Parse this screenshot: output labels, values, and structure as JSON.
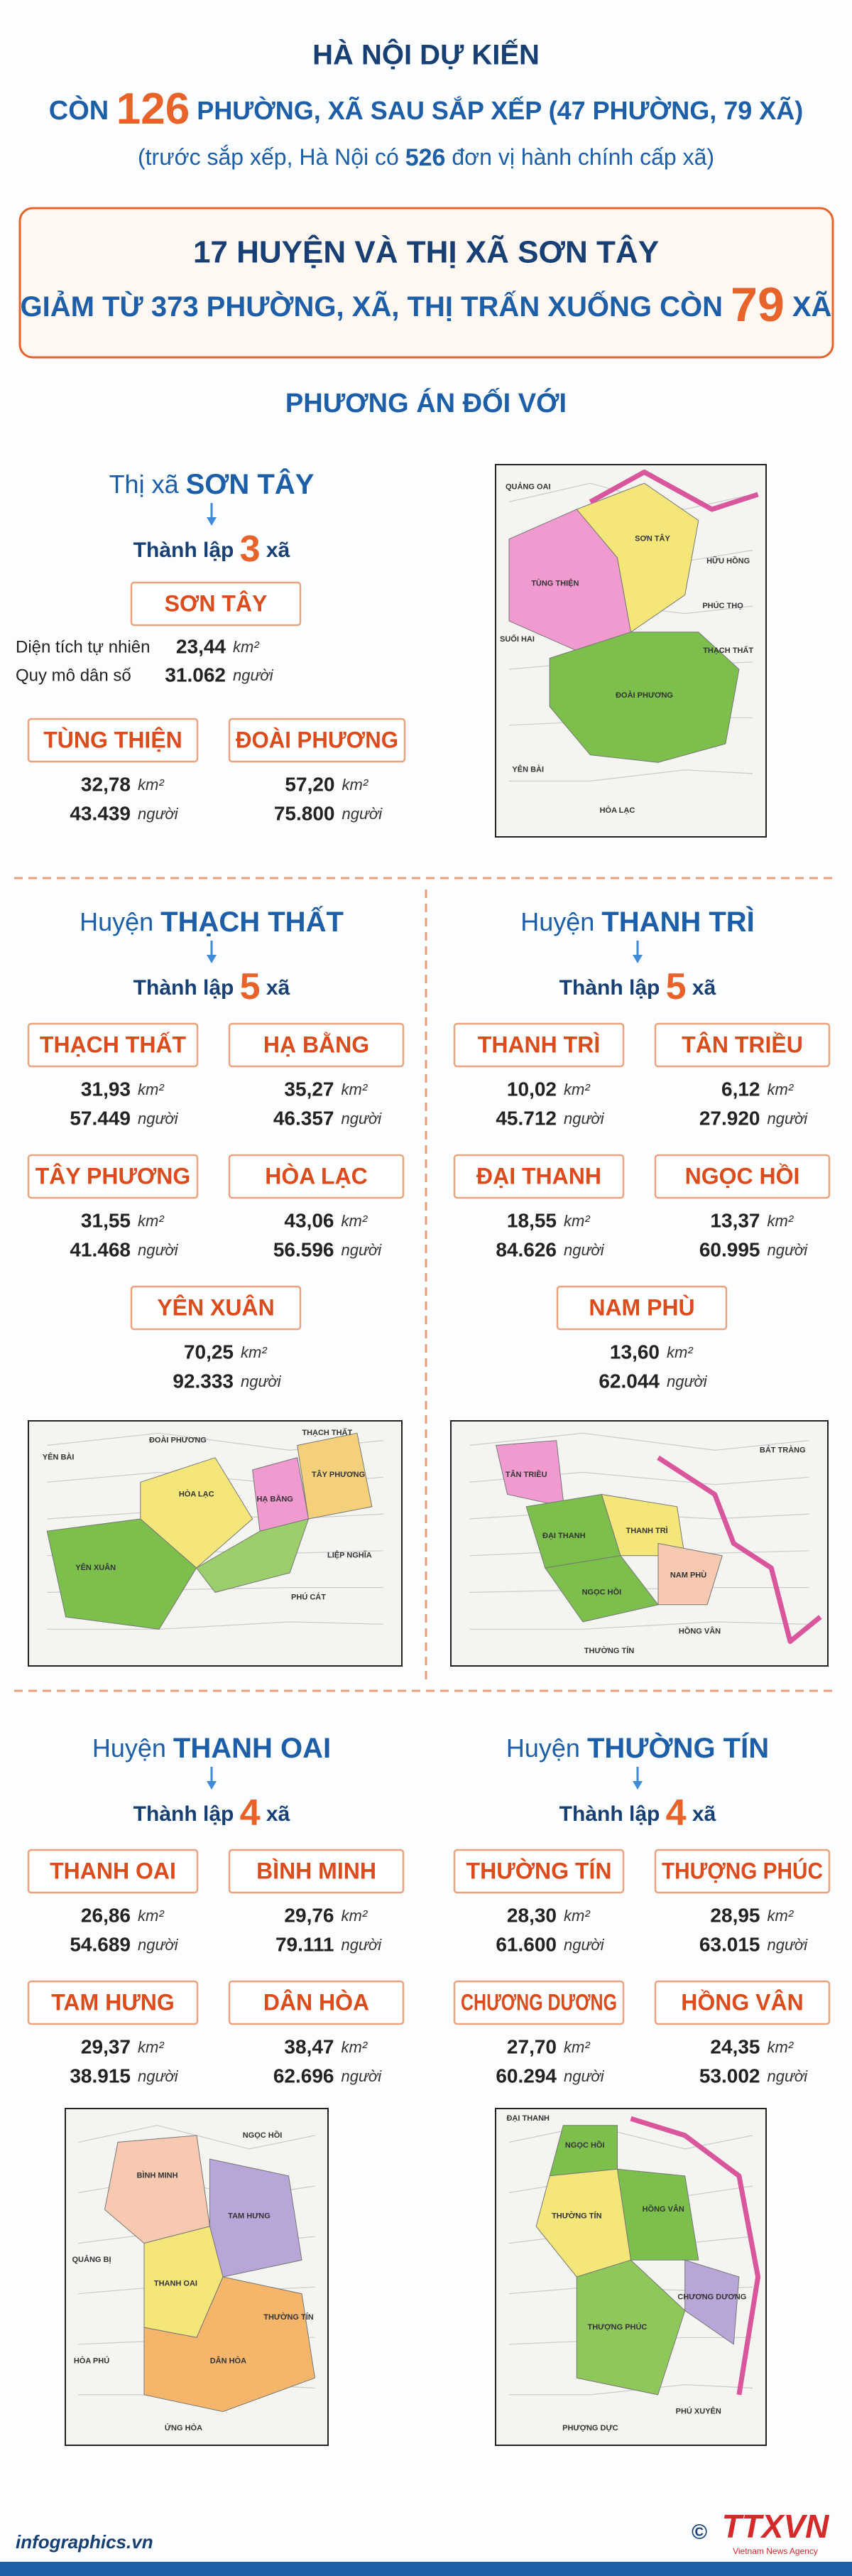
{
  "header": {
    "line1": "HÀ NỘI DỰ KIẾN",
    "line2": {
      "before": "CÒN ",
      "highlight": "126",
      "after": " PHƯỜNG, XÃ SAU SẮP XẾP (47 PHƯỜNG, 79 XÃ)"
    },
    "line3": {
      "before": "(trước sắp xếp, Hà Nội có ",
      "highlight": "526",
      "after": " đơn vị hành chính cấp xã)"
    }
  },
  "summary": {
    "line1": "17 HUYỆN VÀ THỊ XÃ SƠN TÂY",
    "line2": {
      "before": "GIẢM TỪ 373 PHƯỜNG, XÃ, THỊ TRẤN XUỐNG CÒN ",
      "highlight": "79",
      "after": " XÃ"
    }
  },
  "section_heading": "PHƯƠNG ÁN ĐỐI VỚI",
  "units": {
    "area": "km²",
    "population": "người"
  },
  "son_tay_labels": {
    "area": "Diện tích tự nhiên",
    "population": "Quy mô dân số"
  },
  "districts": [
    {
      "prefix": "Thị xã",
      "name": "SƠN TÂY",
      "established": {
        "before": "Thành lập ",
        "count": "3",
        "after": " xã"
      },
      "communes": [
        {
          "name": "SƠN TÂY",
          "area": "23,44",
          "population": "31.062"
        },
        {
          "name": "TÙNG THIỆN",
          "area": "32,78",
          "population": "43.439"
        },
        {
          "name": "ĐOÀI PHƯƠNG",
          "area": "57,20",
          "population": "75.800"
        }
      ],
      "map_labels": [
        "SƠN TÂY",
        "TÙNG THIỆN",
        "ĐOÀI PHƯƠNG",
        "QUẢNG OAI",
        "HỮU HỒNG",
        "SUỐI HAI",
        "PHÚC THỌ",
        "THẠCH THẤT",
        "YÊN BÀI",
        "HÒA LẠC"
      ]
    },
    {
      "prefix": "Huyện",
      "name": "THẠCH THẤT",
      "established": {
        "before": "Thành lập ",
        "count": "5",
        "after": " xã"
      },
      "communes": [
        {
          "name": "THẠCH THẤT",
          "area": "31,93",
          "population": "57.449"
        },
        {
          "name": "HẠ BẰNG",
          "area": "35,27",
          "population": "46.357"
        },
        {
          "name": "TÂY PHƯƠNG",
          "area": "31,55",
          "population": "41.468"
        },
        {
          "name": "HÒA LẠC",
          "area": "43,06",
          "population": "56.596"
        },
        {
          "name": "YÊN XUÂN",
          "area": "70,25",
          "population": "92.333"
        }
      ],
      "map_labels": [
        "THẠCH THẤT",
        "ĐOÀI PHƯƠNG",
        "HÒA LẠC",
        "HẠ BẰNG",
        "TÂY PHƯƠNG",
        "YÊN XUÂN",
        "PHÚ CÁT",
        "LIỆP NGHĨA",
        "YÊN BÀI"
      ]
    },
    {
      "prefix": "Huyện",
      "name": "THANH TRÌ",
      "established": {
        "before": "Thành lập ",
        "count": "5",
        "after": " xã"
      },
      "communes": [
        {
          "name": "THANH TRÌ",
          "area": "10,02",
          "population": "45.712"
        },
        {
          "name": "TÂN TRIỀU",
          "area": "6,12",
          "population": "27.920"
        },
        {
          "name": "ĐẠI THANH",
          "area": "18,55",
          "population": "84.626"
        },
        {
          "name": "NGỌC HỒI",
          "area": "13,37",
          "population": "60.995"
        },
        {
          "name": "NAM PHÙ",
          "area": "13,60",
          "population": "62.044"
        }
      ],
      "map_labels": [
        "THANH TRÌ",
        "ĐẠI THANH",
        "NGỌC HỒI",
        "NAM PHÙ",
        "TÂN TRIỀU",
        "HỒNG VÂN",
        "THƯỜNG TÍN",
        "BÁT TRÀNG"
      ]
    },
    {
      "prefix": "Huyện",
      "name": "THANH OAI",
      "established": {
        "before": "Thành lập ",
        "count": "4",
        "after": " xã"
      },
      "communes": [
        {
          "name": "THANH OAI",
          "area": "26,86",
          "population": "54.689"
        },
        {
          "name": "BÌNH MINH",
          "area": "29,76",
          "population": "79.111"
        },
        {
          "name": "TAM HƯNG",
          "area": "29,37",
          "population": "38.915"
        },
        {
          "name": "DÂN HÒA",
          "area": "38,47",
          "population": "62.696"
        }
      ],
      "map_labels": [
        "BÌNH MINH",
        "TAM HƯNG",
        "THANH OAI",
        "DÂN HÒA",
        "ỨNG HÒA",
        "HÒA PHÚ",
        "NGỌC HỒI",
        "THƯỜNG TÍN",
        "QUẢNG BỊ"
      ]
    },
    {
      "prefix": "Huyện",
      "name": "THƯỜNG TÍN",
      "established": {
        "before": "Thành lập ",
        "count": "4",
        "after": " xã"
      },
      "communes": [
        {
          "name": "THƯỜNG TÍN",
          "area": "28,30",
          "population": "61.600"
        },
        {
          "name": "THƯỢNG PHÚC",
          "area": "28,95",
          "population": "63.015"
        },
        {
          "name": "CHƯƠNG DƯƠNG",
          "area": "27,70",
          "population": "60.294"
        },
        {
          "name": "HỒNG VÂN",
          "area": "24,35",
          "population": "53.002"
        }
      ],
      "map_labels": [
        "THƯỜNG TÍN",
        "NGỌC HỒI",
        "HỒNG VÂN",
        "THƯỢNG PHÚC",
        "CHƯƠNG DƯƠNG",
        "PHƯỢNG DỰC",
        "PHÚ XUYÊN",
        "ĐẠI THANH"
      ]
    }
  ],
  "footer": {
    "site": "infographics.vn",
    "copyright": "©",
    "agency": "TTXVN",
    "agency_en": "Vietnam News Agency"
  }
}
